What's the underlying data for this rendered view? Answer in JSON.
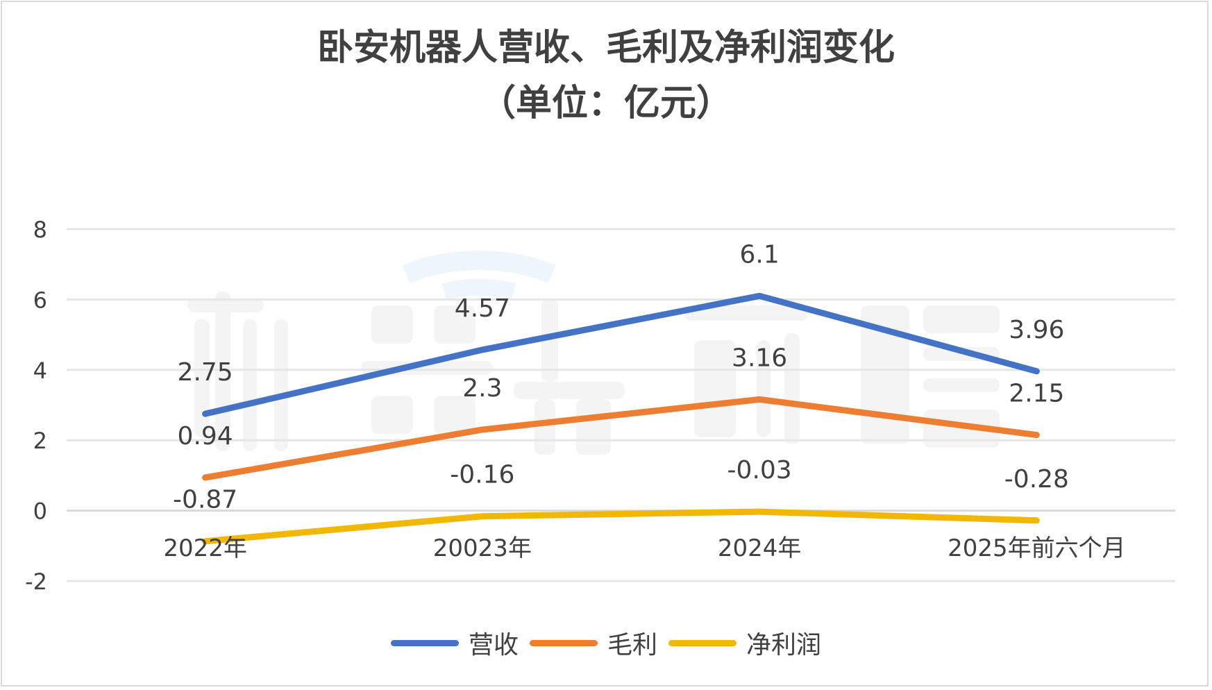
{
  "chart_data": {
    "type": "line",
    "title": "卧安机器人营收、毛利及净利润变化",
    "subtitle": "（单位：亿元）",
    "categories": [
      "2022年",
      "20023年",
      "2024年",
      "2025年前六个月"
    ],
    "series": [
      {
        "name": "营收",
        "values": [
          2.75,
          4.57,
          6.1,
          3.96
        ],
        "labels": [
          "2.75",
          "4.57",
          "6.1",
          "3.96"
        ],
        "color": "#4472C4"
      },
      {
        "name": "毛利",
        "values": [
          0.94,
          2.3,
          3.16,
          2.15
        ],
        "labels": [
          "0.94",
          "2.3",
          "3.16",
          "2.15"
        ],
        "color": "#ED7D31"
      },
      {
        "name": "净利润",
        "values": [
          -0.87,
          -0.16,
          -0.03,
          -0.28
        ],
        "labels": [
          "-0.87",
          "-0.16",
          "-0.03",
          "-0.28"
        ],
        "color": "#F2B700"
      }
    ],
    "ylim": [
      -2,
      8
    ],
    "yticks": [
      "-2",
      "0",
      "2",
      "4",
      "6",
      "8"
    ],
    "ytick_values": [
      -2,
      0,
      2,
      4,
      6,
      8
    ],
    "grid": true,
    "legend": "bottom",
    "xlabel": "",
    "ylabel": ""
  },
  "watermark": "机器人前瞻"
}
